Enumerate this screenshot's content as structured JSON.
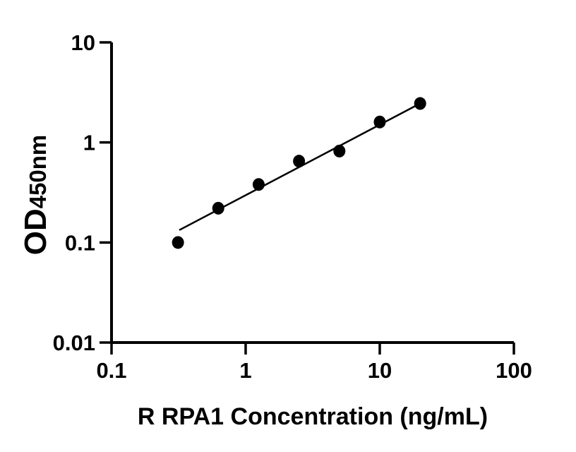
{
  "figure": {
    "background_color": "#ffffff",
    "ink_color": "#000000"
  },
  "chart_data": {
    "type": "scatter",
    "title": "",
    "xlabel": "R RPA1 Concentration (ng/mL)",
    "ylabel": "OD",
    "ylabel_subscript": "450nm",
    "x_scale": "log",
    "y_scale": "log",
    "xlim": [
      0.1,
      100
    ],
    "ylim": [
      0.01,
      10
    ],
    "x_ticks": [
      0.1,
      1,
      10,
      100
    ],
    "x_tick_labels": [
      "0.1",
      "1",
      "10",
      "100"
    ],
    "y_ticks": [
      10,
      1,
      0.1,
      0.01
    ],
    "y_tick_labels": [
      "10",
      "1",
      "0.1",
      "0.01"
    ],
    "grid": false,
    "legend": null,
    "series": [
      {
        "name": "standard-curve-points",
        "marker": "filled-circle",
        "color": "#000000",
        "x": [
          0.313,
          0.625,
          1.25,
          2.5,
          5,
          10,
          20
        ],
        "y": [
          0.1,
          0.22,
          0.38,
          0.65,
          0.82,
          1.6,
          2.45
        ]
      }
    ],
    "trendline": {
      "name": "log-log-linear-fit",
      "color": "#000000",
      "start": {
        "x": 0.32,
        "y": 0.133
      },
      "end": {
        "x": 20,
        "y": 2.45
      }
    }
  }
}
